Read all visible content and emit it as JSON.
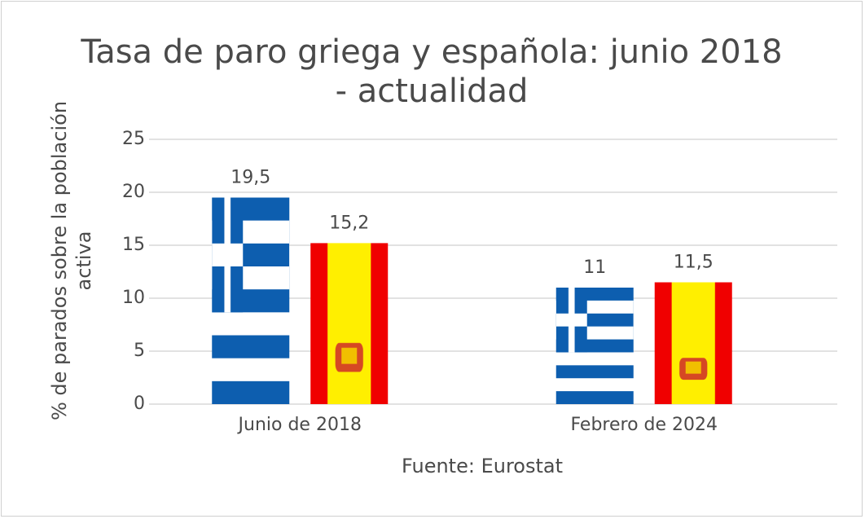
{
  "chart_data": {
    "type": "bar",
    "title": "Tasa de paro griega y española: junio 2018 - actualidad",
    "y_label": "% de parados sobre la población activa",
    "x_label": "Fuente: Eurostat",
    "categories": [
      "Junio de 2018",
      "Febrero de 2024"
    ],
    "series": [
      {
        "color": "#0d5eaf",
        "values": [
          19.5,
          11
        ],
        "value_labels": [
          "19,5",
          "11"
        ]
      },
      {
        "color": "#f00000",
        "values": [
          15.2,
          11.5
        ],
        "value_labels": [
          "15,2",
          "11,5"
        ]
      }
    ],
    "ylim": [
      0,
      25
    ],
    "yticks": [
      0,
      5,
      10,
      15,
      20,
      25
    ],
    "grid": true
  }
}
